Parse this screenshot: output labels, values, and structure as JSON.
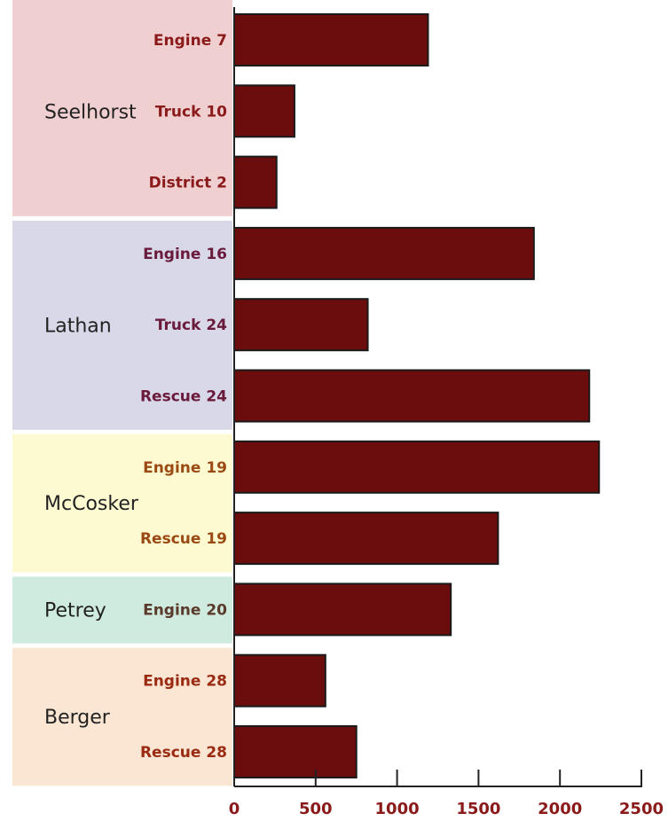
{
  "chart_data": {
    "type": "bar",
    "orientation": "horizontal",
    "xlim": [
      0,
      2500
    ],
    "ticks": [
      0,
      500,
      1000,
      1500,
      2000,
      2500
    ],
    "bar_color": "#6b0d0d",
    "groups": [
      {
        "name": "Seelhorst",
        "bg_color": "#f0cfd1",
        "label_color": "#8b1a1a",
        "units": [
          {
            "label": "Engine 7",
            "value": 1190
          },
          {
            "label": "Truck 10",
            "value": 370
          },
          {
            "label": "District 2",
            "value": 260
          }
        ]
      },
      {
        "name": "Lathan",
        "bg_color": "#d8d8e8",
        "label_color": "#6a1a3a",
        "units": [
          {
            "label": "Engine 16",
            "value": 1840
          },
          {
            "label": "Truck 24",
            "value": 820
          },
          {
            "label": "Rescue 24",
            "value": 2180
          }
        ]
      },
      {
        "name": "McCosker",
        "bg_color": "#fdfad2",
        "label_color": "#9a4a12",
        "units": [
          {
            "label": "Engine 19",
            "value": 2240
          },
          {
            "label": "Rescue 19",
            "value": 1620
          }
        ]
      },
      {
        "name": "Petrey",
        "bg_color": "#cfeadf",
        "label_color": "#5a3a2a",
        "units": [
          {
            "label": "Engine 20",
            "value": 1330
          }
        ]
      },
      {
        "name": "Berger",
        "bg_color": "#fae6d2",
        "label_color": "#9a2a12",
        "units": [
          {
            "label": "Engine 28",
            "value": 560
          },
          {
            "label": "Rescue 28",
            "value": 750
          }
        ]
      }
    ]
  }
}
